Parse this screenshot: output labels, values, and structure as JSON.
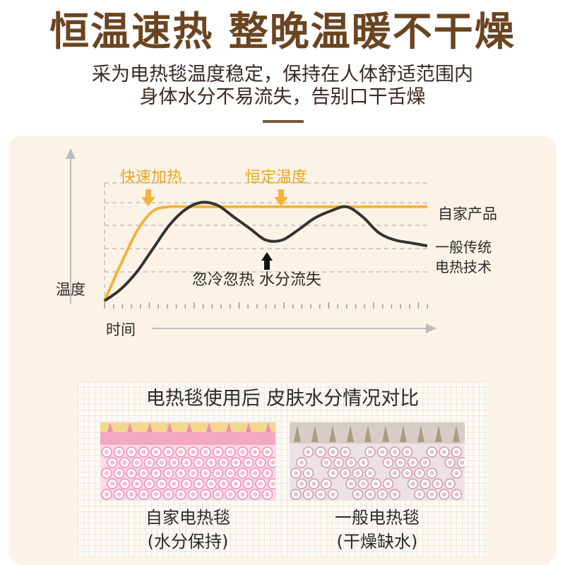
{
  "headline": "恒温速热 整晚温暖不干燥",
  "subtitle": {
    "line1": "采为电热毯温度稳定，保持在人体舒适范围内",
    "line2": "身体水分不易流失，告别口干舌燥"
  },
  "chart_data": {
    "type": "line",
    "xlabel": "时间",
    "ylabel": "温度",
    "annotations": {
      "fast_heat": "快速加热",
      "constant_temp": "恒定温度",
      "fluctuation": "忽冷忽热 水分流失"
    },
    "x": [
      0,
      5,
      10,
      15,
      20,
      25,
      30,
      35,
      40,
      45,
      50,
      55,
      60,
      65,
      70,
      75,
      80,
      85,
      90,
      95,
      100
    ],
    "series": [
      {
        "name": "自家产品",
        "color": "#f0b43c",
        "values": [
          0,
          25,
          48,
          62,
          65,
          65,
          65,
          65,
          65,
          65,
          65,
          65,
          65,
          65,
          65,
          65,
          65,
          65,
          65,
          65,
          65
        ]
      },
      {
        "name_lines": [
          "一般传统",
          "电热技术"
        ],
        "color": "#333333",
        "values": [
          0,
          8,
          20,
          36,
          52,
          63,
          68,
          66,
          58,
          50,
          42,
          42,
          49,
          57,
          62,
          65,
          58,
          47,
          42,
          40,
          38
        ]
      }
    ],
    "ylim": [
      0,
      100
    ]
  },
  "comparison": {
    "title": "电热毯使用后 皮肤水分情况对比",
    "left": {
      "line1": "自家电热毯",
      "line2": "(水分保持)"
    },
    "right": {
      "line1": "一般电热毯",
      "line2": "(干燥缺水)"
    }
  },
  "colors": {
    "brand_brown": "#6b4420",
    "accent_yellow": "#f0b43c",
    "panel_bg": "#fcf3e6",
    "skin_pink": "#f4a8c4",
    "skin_dry": "#ddd0d4"
  }
}
